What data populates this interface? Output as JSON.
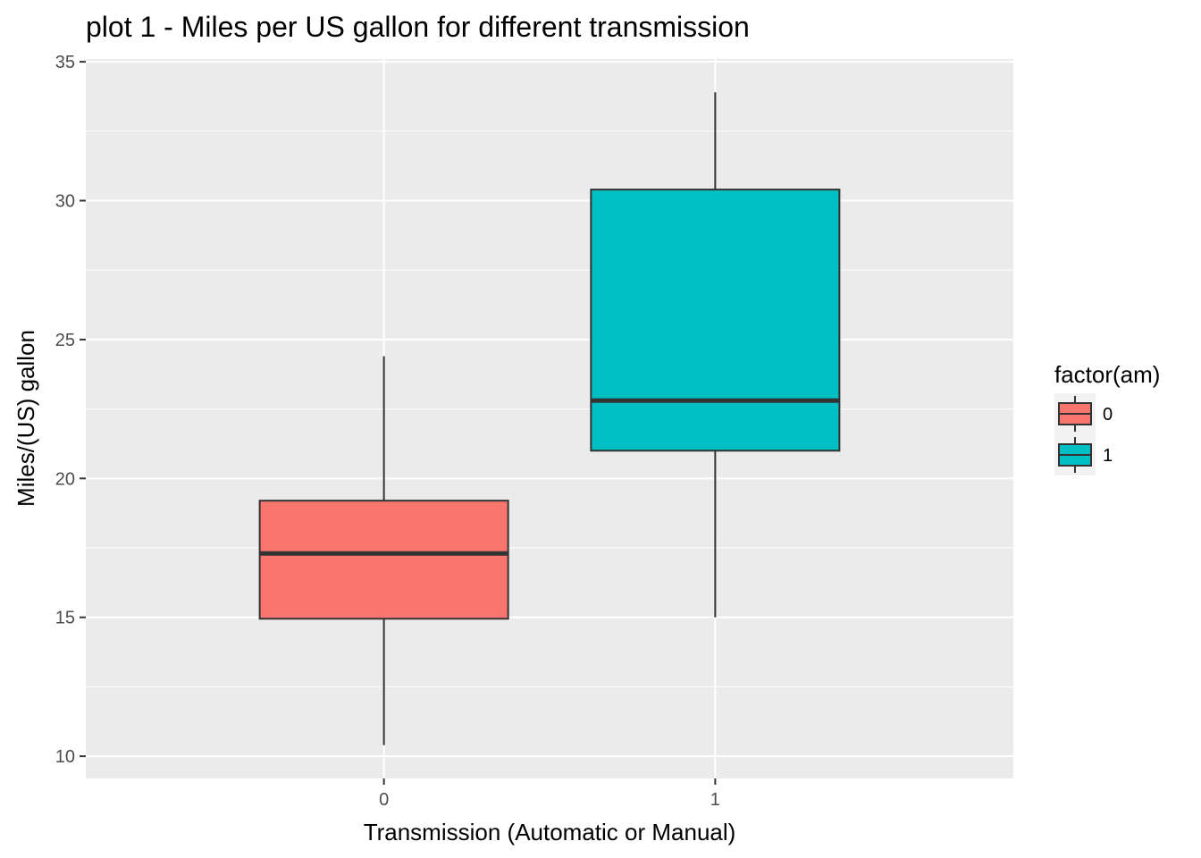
{
  "chart_data": {
    "type": "boxplot",
    "title": "plot 1 - Miles per US gallon for different transmission",
    "xlabel": "Transmission (Automatic or Manual)",
    "ylabel": "Miles/(US) gallon",
    "categories": [
      "0",
      "1"
    ],
    "ylim": [
      9.2,
      35.1
    ],
    "yticks": [
      10,
      15,
      20,
      25,
      30,
      35
    ],
    "grid": true,
    "legend": {
      "title": "factor(am)",
      "placement": "right",
      "entries": [
        {
          "label": "0",
          "color": "#F8766D"
        },
        {
          "label": "1",
          "color": "#00BFC4"
        }
      ]
    },
    "boxes": [
      {
        "category": "0",
        "min": 10.4,
        "q1": 14.95,
        "median": 17.3,
        "q3": 19.2,
        "max": 24.4,
        "color": "#F8766D"
      },
      {
        "category": "1",
        "min": 15.0,
        "q1": 21.0,
        "median": 22.8,
        "q3": 30.4,
        "max": 33.9,
        "color": "#00BFC4"
      }
    ]
  },
  "colors": {
    "panel_background": "#EBEBEB",
    "grid": "#FFFFFF",
    "outline": "#333333"
  }
}
